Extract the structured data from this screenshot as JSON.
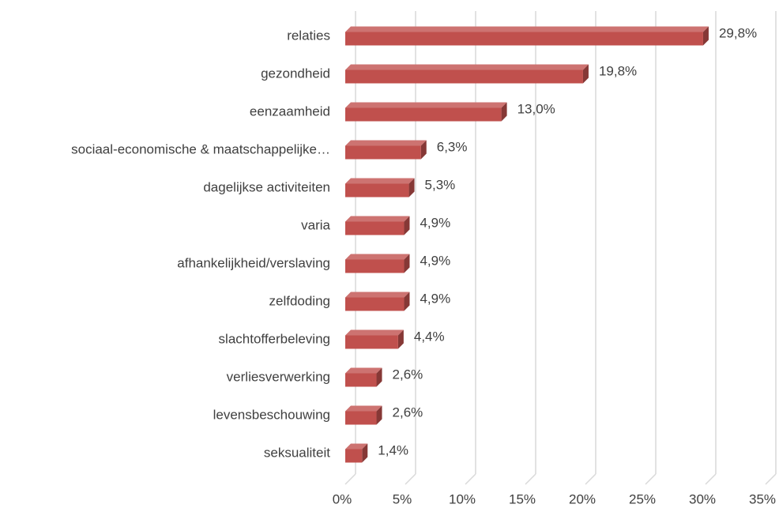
{
  "chart_data": {
    "type": "bar3d_horizontal",
    "categories": [
      "relaties",
      "gezondheid",
      "eenzaamheid",
      "sociaal-economische & maatschappelijke…",
      "dagelijkse activiteiten",
      "varia",
      "afhankelijkheid/verslaving",
      "zelfdoding",
      "slachtofferbeleving",
      "verliesverwerking",
      "levensbeschouwing",
      "seksualiteit"
    ],
    "values": [
      29.8,
      19.8,
      13.0,
      6.3,
      5.3,
      4.9,
      4.9,
      4.9,
      4.4,
      2.6,
      2.6,
      1.4
    ],
    "value_labels": [
      "29,8%",
      "19,8%",
      "13,0%",
      "6,3%",
      "5,3%",
      "4,9%",
      "4,9%",
      "4,9%",
      "4,4%",
      "2,6%",
      "2,6%",
      "1,4%"
    ],
    "color": "#c0504d",
    "xlim": [
      0,
      35
    ],
    "xticks": [
      {
        "value": 0,
        "label": "0%"
      },
      {
        "value": 5,
        "label": "5%"
      },
      {
        "value": 10,
        "label": "10%"
      },
      {
        "value": 15,
        "label": "15%"
      },
      {
        "value": 20,
        "label": "20%"
      },
      {
        "value": 25,
        "label": "25%"
      },
      {
        "value": 30,
        "label": "30%"
      },
      {
        "value": 35,
        "label": "35%"
      }
    ],
    "grid": true
  }
}
